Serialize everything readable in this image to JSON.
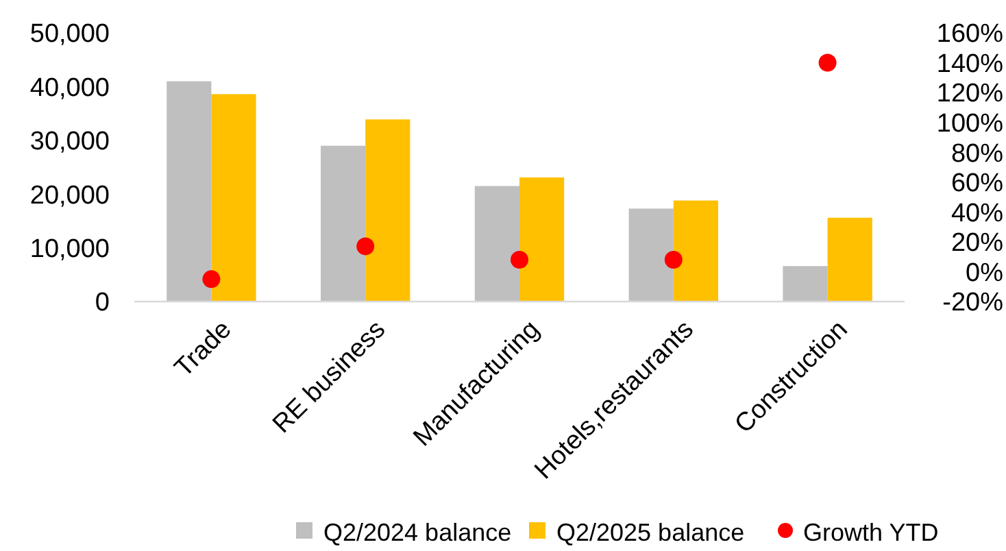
{
  "chart_data": {
    "type": "bar",
    "categories": [
      "Trade",
      "RE business",
      "Manufacturing",
      "Hotels,restaurants",
      "Construction"
    ],
    "series": [
      {
        "name": "Q2/2024 balance",
        "color": "#bfbfbf",
        "values": [
          41000,
          29000,
          21500,
          17300,
          6600
        ]
      },
      {
        "name": "Q2/2025 balance",
        "color": "#ffc000",
        "values": [
          38600,
          33900,
          23100,
          18800,
          15600
        ]
      },
      {
        "name": "Growth YTD",
        "type": "scatter",
        "axis": "y2",
        "color": "#ff0000",
        "values": [
          -5,
          17,
          8,
          8,
          140
        ]
      }
    ],
    "ylim": [
      0,
      50000
    ],
    "yticks": [
      {
        "value": 0,
        "label": "0"
      },
      {
        "value": 10000,
        "label": "10,000"
      },
      {
        "value": 20000,
        "label": "20,000"
      },
      {
        "value": 30000,
        "label": "30,000"
      },
      {
        "value": 40000,
        "label": "40,000"
      },
      {
        "value": 50000,
        "label": "50,000"
      }
    ],
    "y2lim": [
      -20,
      160
    ],
    "y2ticks": [
      {
        "value": -20,
        "label": "-20%"
      },
      {
        "value": 0,
        "label": "0%"
      },
      {
        "value": 20,
        "label": "20%"
      },
      {
        "value": 40,
        "label": "40%"
      },
      {
        "value": 60,
        "label": "60%"
      },
      {
        "value": 80,
        "label": "80%"
      },
      {
        "value": 100,
        "label": "100%"
      },
      {
        "value": 120,
        "label": "120%"
      },
      {
        "value": 140,
        "label": "140%"
      },
      {
        "value": 160,
        "label": "160%"
      }
    ],
    "legend": "bottom",
    "marker": "circle",
    "grid": false
  }
}
